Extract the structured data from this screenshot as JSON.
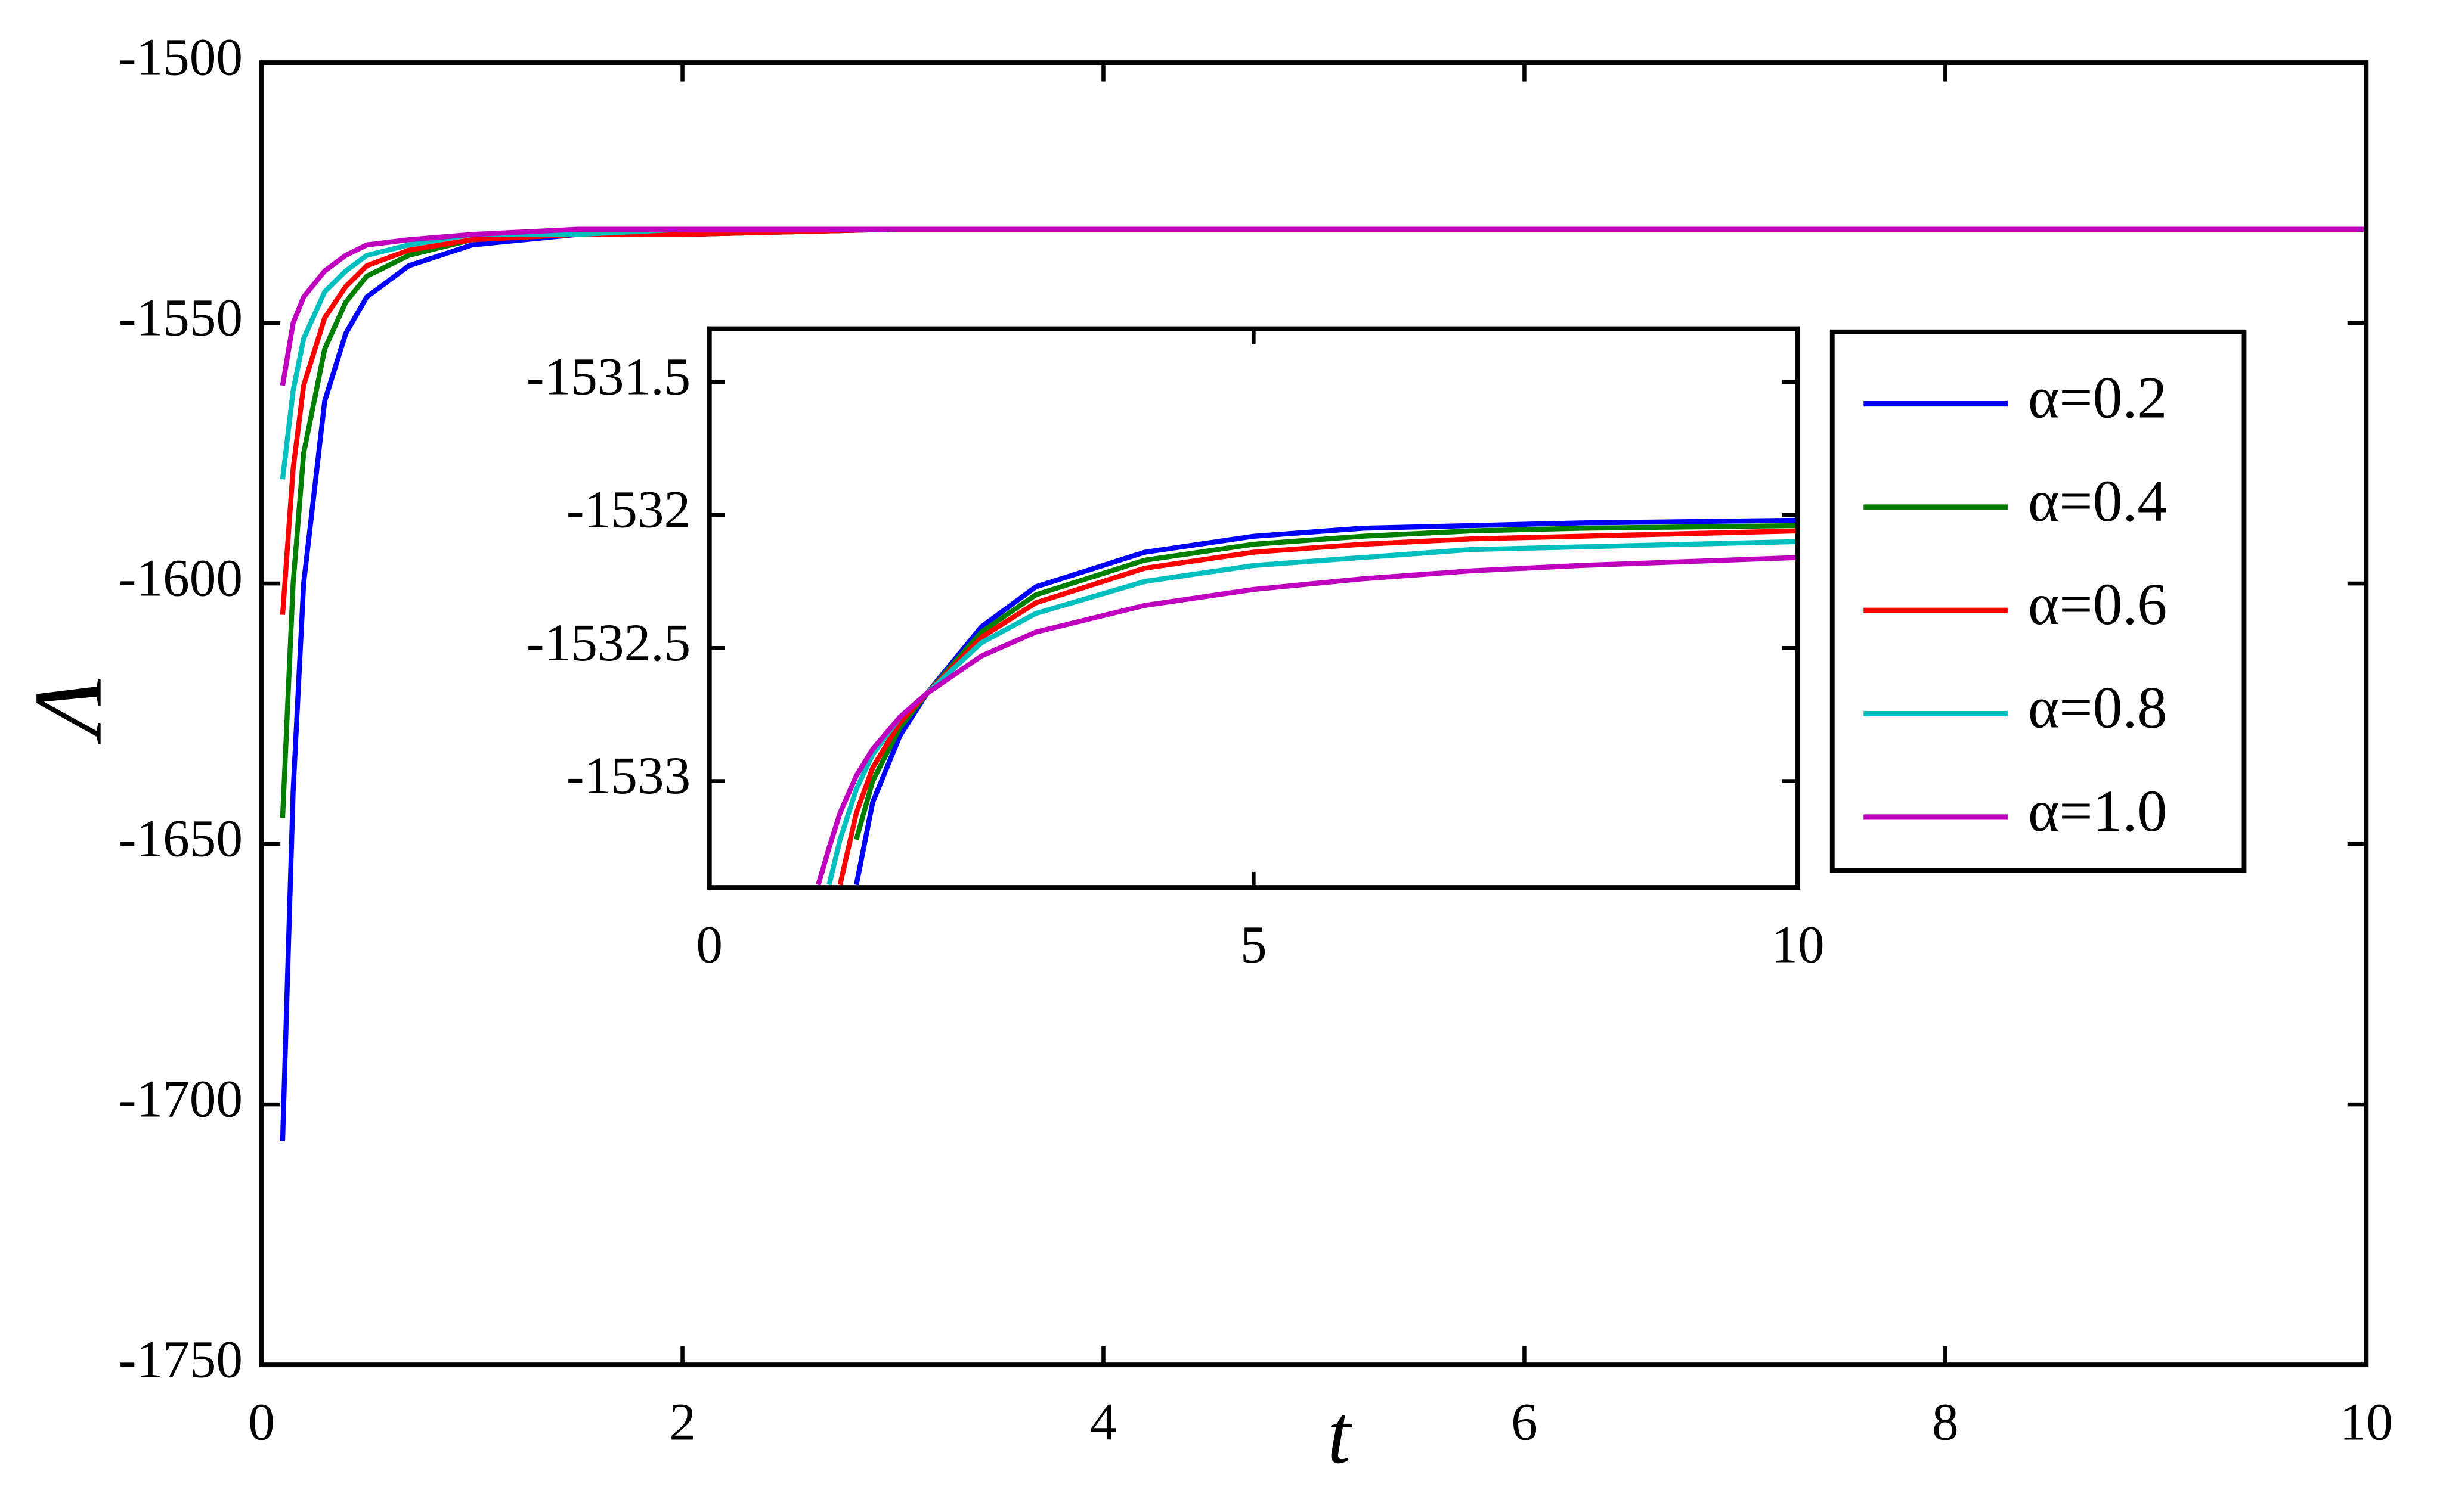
{
  "chart_data": [
    {
      "type": "line",
      "xlabel": "t",
      "ylabel": "Λ",
      "x": [
        0.1,
        0.15,
        0.2,
        0.3,
        0.4,
        0.5,
        0.7,
        1,
        1.5,
        2,
        3,
        5,
        7,
        10
      ],
      "xlim": [
        0,
        10
      ],
      "ylim": [
        -1750,
        -1500
      ],
      "xticks": [
        0,
        2,
        4,
        6,
        8,
        10
      ],
      "yticks": [
        -1750,
        -1700,
        -1650,
        -1600,
        -1550,
        -1500
      ],
      "series": [
        {
          "name": "α=0.2",
          "color": "#0000ff",
          "values": [
            -1707,
            -1640,
            -1600,
            -1565,
            -1552,
            -1545,
            -1539,
            -1535,
            -1533,
            -1533,
            -1532,
            -1532,
            -1532,
            -1532
          ]
        },
        {
          "name": "α=0.4",
          "color": "#007f00",
          "values": [
            -1645,
            -1600,
            -1575,
            -1555,
            -1546,
            -1541,
            -1537,
            -1534,
            -1533,
            -1533,
            -1532,
            -1532,
            -1532,
            -1532
          ]
        },
        {
          "name": "α=0.6",
          "color": "#ff0000",
          "values": [
            -1606,
            -1578,
            -1562,
            -1549,
            -1543,
            -1539,
            -1536,
            -1534,
            -1533,
            -1533,
            -1532,
            -1532,
            -1532,
            -1532
          ]
        },
        {
          "name": "α=0.8",
          "color": "#00bfbf",
          "values": [
            -1580,
            -1563,
            -1553,
            -1544,
            -1540,
            -1537,
            -1535,
            -1533,
            -1533,
            -1532,
            -1532,
            -1532,
            -1532,
            -1532
          ]
        },
        {
          "name": "α=1.0",
          "color": "#bf00bf",
          "values": [
            -1562,
            -1550,
            -1545,
            -1540,
            -1537,
            -1535,
            -1534,
            -1533,
            -1532,
            -1532,
            -1532,
            -1532,
            -1532,
            -1532
          ]
        }
      ]
    },
    {
      "type": "line",
      "x": [
        1.0,
        1.1,
        1.2,
        1.35,
        1.5,
        1.75,
        2,
        2.5,
        3,
        4,
        5,
        6,
        7,
        8,
        10
      ],
      "xlim": [
        0,
        10
      ],
      "ylim": [
        -1533.4,
        -1531.3
      ],
      "xticks": [
        0,
        5,
        10
      ],
      "yticks": [
        -1533,
        -1532.5,
        -1532,
        -1531.5
      ],
      "series": [
        {
          "color": "#0000ff",
          "values": [
            null,
            null,
            null,
            -1533.39,
            -1533.08,
            -1532.83,
            -1532.67,
            -1532.42,
            -1532.27,
            -1532.14,
            -1532.08,
            -1532.05,
            -1532.04,
            -1532.03,
            -1532.02
          ]
        },
        {
          "color": "#007f00",
          "values": [
            null,
            null,
            null,
            -1533.22,
            -1533.0,
            -1532.8,
            -1532.67,
            -1532.44,
            -1532.3,
            -1532.17,
            -1532.11,
            -1532.08,
            -1532.06,
            -1532.05,
            -1532.04
          ]
        },
        {
          "color": "#ff0000",
          "values": [
            null,
            null,
            -1533.39,
            -1533.12,
            -1532.95,
            -1532.78,
            -1532.67,
            -1532.46,
            -1532.33,
            -1532.2,
            -1532.14,
            -1532.11,
            -1532.09,
            -1532.08,
            -1532.06
          ]
        },
        {
          "color": "#00bfbf",
          "values": [
            null,
            -1533.39,
            -1533.22,
            -1533.03,
            -1532.9,
            -1532.76,
            -1532.67,
            -1532.48,
            -1532.37,
            -1532.25,
            -1532.19,
            -1532.16,
            -1532.13,
            -1532.12,
            -1532.1
          ]
        },
        {
          "color": "#bf00bf",
          "values": [
            -1533.39,
            -1533.25,
            -1533.12,
            -1532.98,
            -1532.88,
            -1532.76,
            -1532.67,
            -1532.53,
            -1532.44,
            -1532.34,
            -1532.28,
            -1532.24,
            -1532.21,
            -1532.19,
            -1532.16
          ]
        }
      ]
    }
  ]
}
